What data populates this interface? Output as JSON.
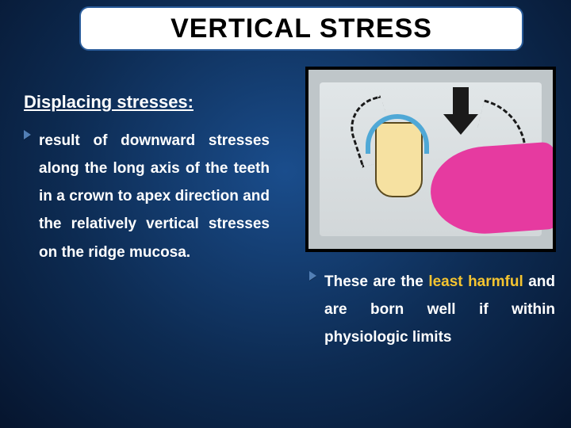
{
  "title": {
    "text": "VERTICAL STRESS",
    "fontsize": 34,
    "color": "#000000"
  },
  "subheading": {
    "text": "Displacing stresses:",
    "fontsize": 22,
    "color": "#ffffff"
  },
  "left_bullet": {
    "chevron_color": "#527fb5",
    "fontsize": 19,
    "text_color": "#ffffff",
    "line_height": 1.85,
    "text": "result of downward stresses along the long axis of the teeth in a crown to apex direction and the relatively vertical stresses on the ridge mucosa."
  },
  "right_bullet": {
    "chevron_color": "#527fb5",
    "fontsize": 19,
    "text_color": "#ffffff",
    "emphasis_color": "#f4c430",
    "line_height": 1.85,
    "prefix": "These are the ",
    "emph": "least harmful",
    "suffix": " and are born well if within physiologic limits"
  },
  "image": {
    "border_color": "#000000",
    "background": "#bfc6c9",
    "denture_color": "#e63aa0",
    "abutment_color": "#f6e1a1",
    "clasp_color": "#4fa8d6",
    "arrow_color": "#1a1a1a"
  },
  "background": {
    "gradient_center": "#1a4d8c",
    "gradient_mid": "#0d2b52",
    "gradient_edge": "#06152e"
  }
}
